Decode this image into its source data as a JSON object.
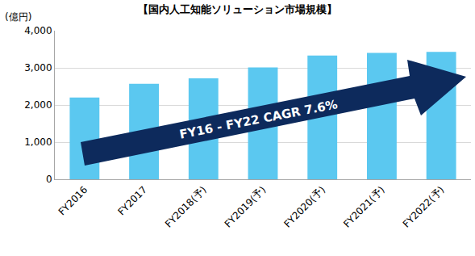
{
  "chart_data": {
    "type": "bar",
    "title": "【国内人工知能ソリューション市場規模】",
    "ylabel": "(億円)",
    "categories": [
      "FY2016",
      "FY2017",
      "FY2018(予)",
      "FY2019(予)",
      "FY2020(予)",
      "FY2021(予)",
      "FY2022(予)"
    ],
    "values": [
      2200,
      2570,
      2720,
      3010,
      3330,
      3400,
      3430
    ],
    "color": "#5bc8f0",
    "ylim": [
      0,
      4000
    ],
    "yticks": [
      0,
      {
        "value": 1000,
        "label": "1,000"
      },
      {
        "value": 2000,
        "label": "2,000"
      },
      {
        "value": 3000,
        "label": "3,000"
      },
      {
        "value": 4000,
        "label": "4,000"
      }
    ],
    "grid": true,
    "annotations": [
      {
        "text": "FY16 - FY22 CAGR 7.6%"
      }
    ]
  }
}
